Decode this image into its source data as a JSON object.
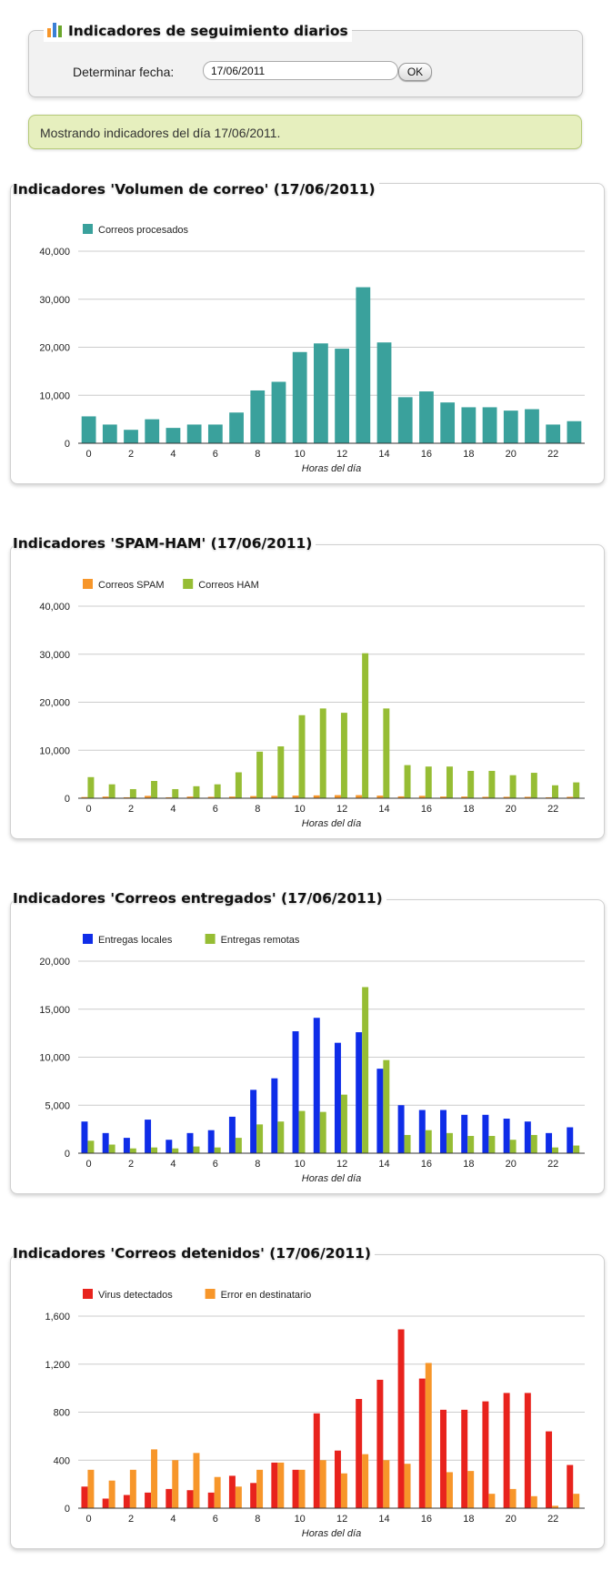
{
  "header": {
    "title": "Indicadores de seguimiento diarios",
    "icon": "bar-chart-icon",
    "date_label": "Determinar fecha:",
    "date_value": "17/06/2011",
    "ok_label": "OK"
  },
  "notice": {
    "text": "Mostrando indicadores del día 17/06/2011."
  },
  "colors": {
    "teal": "#3aa19c",
    "orange": "#f7962a",
    "green": "#96bd34",
    "blue": "#0f2de8",
    "red": "#e8231d",
    "gridline": "#cccccc"
  },
  "chart_data": [
    {
      "type": "bar",
      "title": "Indicadores 'Volumen de correo' (17/06/2011)",
      "xlabel": "Horas del día",
      "ylabel": "",
      "ylim": [
        0,
        40000
      ],
      "yticks": [
        "0",
        "10,000",
        "20,000",
        "30,000",
        "40,000"
      ],
      "xtick_labels": [
        "0",
        "2",
        "4",
        "6",
        "8",
        "10",
        "12",
        "14",
        "16",
        "18",
        "20",
        "22"
      ],
      "legend_position": "top-left",
      "grid": true,
      "categories": [
        0,
        1,
        2,
        3,
        4,
        5,
        6,
        7,
        8,
        9,
        10,
        11,
        12,
        13,
        14,
        15,
        16,
        17,
        18,
        19,
        20,
        21,
        22,
        23
      ],
      "series": [
        {
          "name": "Correos procesados",
          "color": "#3aa19c",
          "values": [
            5600,
            3900,
            2800,
            5000,
            3200,
            3900,
            3900,
            6400,
            11000,
            12800,
            19000,
            20800,
            19700,
            32500,
            21000,
            9600,
            10800,
            8500,
            7500,
            7500,
            6800,
            7100,
            3900,
            4600
          ]
        }
      ]
    },
    {
      "type": "bar",
      "title": "Indicadores 'SPAM-HAM' (17/06/2011)",
      "xlabel": "Horas del día",
      "ylabel": "",
      "ylim": [
        0,
        40000
      ],
      "yticks": [
        "0",
        "10,000",
        "20,000",
        "30,000",
        "40,000"
      ],
      "xtick_labels": [
        "0",
        "2",
        "4",
        "6",
        "8",
        "10",
        "12",
        "14",
        "16",
        "18",
        "20",
        "22"
      ],
      "legend_position": "top-left",
      "grid": true,
      "categories": [
        0,
        1,
        2,
        3,
        4,
        5,
        6,
        7,
        8,
        9,
        10,
        11,
        12,
        13,
        14,
        15,
        16,
        17,
        18,
        19,
        20,
        21,
        22,
        23
      ],
      "series": [
        {
          "name": "Correos SPAM",
          "color": "#f7962a",
          "values": [
            250,
            350,
            200,
            500,
            200,
            350,
            300,
            350,
            450,
            500,
            550,
            600,
            650,
            650,
            550,
            400,
            500,
            350,
            350,
            300,
            300,
            300,
            200,
            300
          ]
        },
        {
          "name": "Correos HAM",
          "color": "#96bd34",
          "values": [
            4400,
            2900,
            1900,
            3600,
            1900,
            2500,
            2900,
            5400,
            9700,
            10800,
            17300,
            18700,
            17800,
            30200,
            18700,
            6900,
            6600,
            6600,
            5700,
            5700,
            4800,
            5300,
            2700,
            3300
          ]
        }
      ]
    },
    {
      "type": "bar",
      "title": "Indicadores 'Correos entregados' (17/06/2011)",
      "xlabel": "Horas del día",
      "ylabel": "",
      "ylim": [
        0,
        20000
      ],
      "yticks": [
        "0",
        "5,000",
        "10,000",
        "15,000",
        "20,000"
      ],
      "xtick_labels": [
        "0",
        "2",
        "4",
        "6",
        "8",
        "10",
        "12",
        "14",
        "16",
        "18",
        "20",
        "22"
      ],
      "legend_position": "top-left",
      "grid": true,
      "categories": [
        0,
        1,
        2,
        3,
        4,
        5,
        6,
        7,
        8,
        9,
        10,
        11,
        12,
        13,
        14,
        15,
        16,
        17,
        18,
        19,
        20,
        21,
        22,
        23
      ],
      "series": [
        {
          "name": "Entregas locales",
          "color": "#0f2de8",
          "values": [
            3300,
            2100,
            1600,
            3500,
            1400,
            2100,
            2400,
            3800,
            6600,
            7800,
            12700,
            14100,
            11500,
            12600,
            8800,
            5000,
            4500,
            4500,
            4000,
            4000,
            3600,
            3300,
            2100,
            2700
          ]
        },
        {
          "name": "Entregas remotas",
          "color": "#96bd34",
          "values": [
            1300,
            900,
            500,
            600,
            500,
            700,
            600,
            1600,
            3000,
            3300,
            4400,
            4300,
            6100,
            17300,
            9700,
            1900,
            2400,
            2100,
            1800,
            1800,
            1400,
            1900,
            600,
            800
          ]
        }
      ]
    },
    {
      "type": "bar",
      "title": "Indicadores 'Correos detenidos' (17/06/2011)",
      "xlabel": "Horas del día",
      "ylabel": "",
      "ylim": [
        0,
        1600
      ],
      "yticks": [
        "0",
        "400",
        "800",
        "1,200",
        "1,600"
      ],
      "xtick_labels": [
        "0",
        "2",
        "4",
        "6",
        "8",
        "10",
        "12",
        "14",
        "16",
        "18",
        "20",
        "22"
      ],
      "legend_position": "top-left",
      "grid": true,
      "categories": [
        0,
        1,
        2,
        3,
        4,
        5,
        6,
        7,
        8,
        9,
        10,
        11,
        12,
        13,
        14,
        15,
        16,
        17,
        18,
        19,
        20,
        21,
        22,
        23
      ],
      "series": [
        {
          "name": "Virus detectados",
          "color": "#e8231d",
          "values": [
            180,
            80,
            110,
            130,
            160,
            150,
            130,
            270,
            210,
            380,
            320,
            790,
            480,
            910,
            1070,
            1490,
            1080,
            820,
            820,
            890,
            960,
            960,
            640,
            360
          ]
        },
        {
          "name": "Error en destinatario",
          "color": "#f7962a",
          "values": [
            320,
            230,
            320,
            490,
            400,
            460,
            260,
            180,
            320,
            380,
            320,
            400,
            290,
            450,
            400,
            370,
            1210,
            300,
            310,
            120,
            160,
            100,
            20,
            120
          ]
        }
      ]
    }
  ]
}
